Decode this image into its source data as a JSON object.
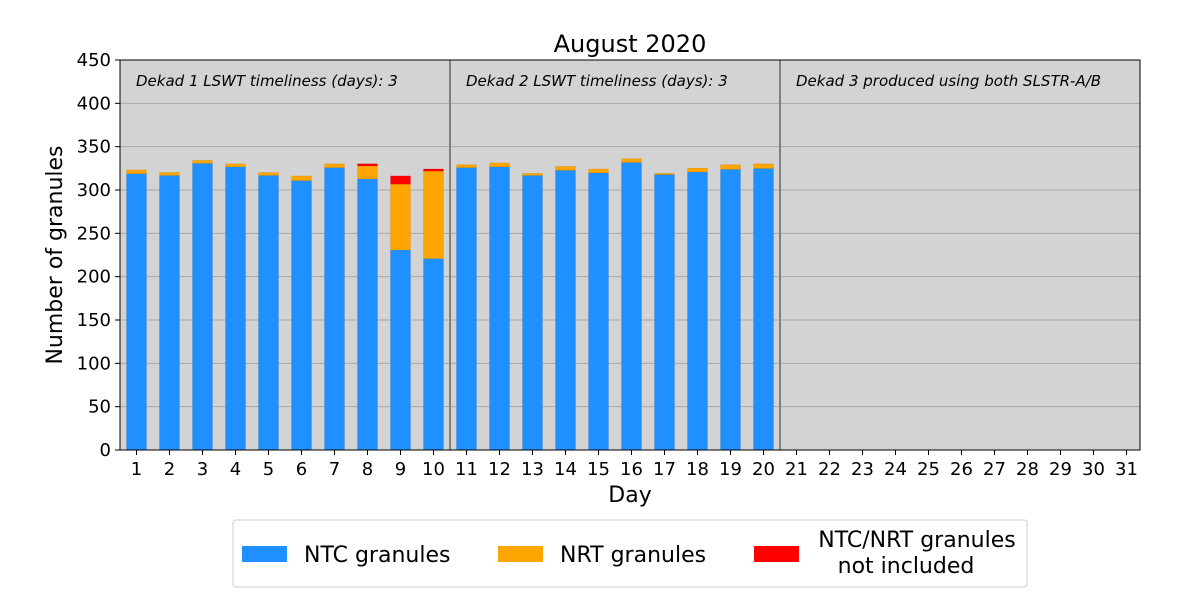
{
  "chart_data": {
    "type": "bar",
    "stacked": true,
    "title": "August 2020",
    "xlabel": "Day",
    "ylabel": "Number of granules",
    "ylim": [
      0,
      450
    ],
    "yticks": [
      0,
      50,
      100,
      150,
      200,
      250,
      300,
      350,
      400,
      450
    ],
    "categories": [
      "1",
      "2",
      "3",
      "4",
      "5",
      "6",
      "7",
      "8",
      "9",
      "10",
      "11",
      "12",
      "13",
      "14",
      "15",
      "16",
      "17",
      "18",
      "19",
      "20",
      "21",
      "22",
      "23",
      "24",
      "25",
      "26",
      "27",
      "28",
      "29",
      "30",
      "31"
    ],
    "series": [
      {
        "name": "NTC granules",
        "color": "#1e90ff",
        "values": [
          319,
          317,
          331,
          327,
          317,
          311,
          326,
          313,
          231,
          221,
          326,
          327,
          317,
          323,
          320,
          332,
          318,
          321,
          324,
          325,
          0,
          0,
          0,
          0,
          0,
          0,
          0,
          0,
          0,
          0,
          0
        ]
      },
      {
        "name": "NRT granules",
        "color": "#ffa500",
        "values": [
          4,
          3,
          3,
          3,
          3,
          5,
          4,
          15,
          76,
          101,
          3,
          4,
          2,
          4,
          4,
          4,
          1,
          4,
          5,
          5,
          0,
          0,
          0,
          0,
          0,
          0,
          0,
          0,
          0,
          0,
          0
        ]
      },
      {
        "name": "NTC/NRT granules not included",
        "legend_lines": [
          "NTC/NRT granules",
          "not included"
        ],
        "color": "#ff0000",
        "values": [
          0,
          0,
          0,
          0,
          0,
          0,
          0,
          2,
          9,
          2,
          0,
          0,
          0,
          0,
          0,
          0,
          0,
          0,
          0,
          0,
          0,
          0,
          0,
          0,
          0,
          0,
          0,
          0,
          0,
          0,
          0
        ]
      }
    ],
    "dividers_after_day": [
      10,
      20
    ],
    "annotations": [
      "Dekad 1 LSWT timeliness (days): 3",
      "Dekad 2 LSWT timeliness (days): 3",
      "Dekad 3 produced using both SLSTR-A/B"
    ],
    "grid": true,
    "legend_position": "bottom",
    "background_color": "#d3d3d3"
  }
}
